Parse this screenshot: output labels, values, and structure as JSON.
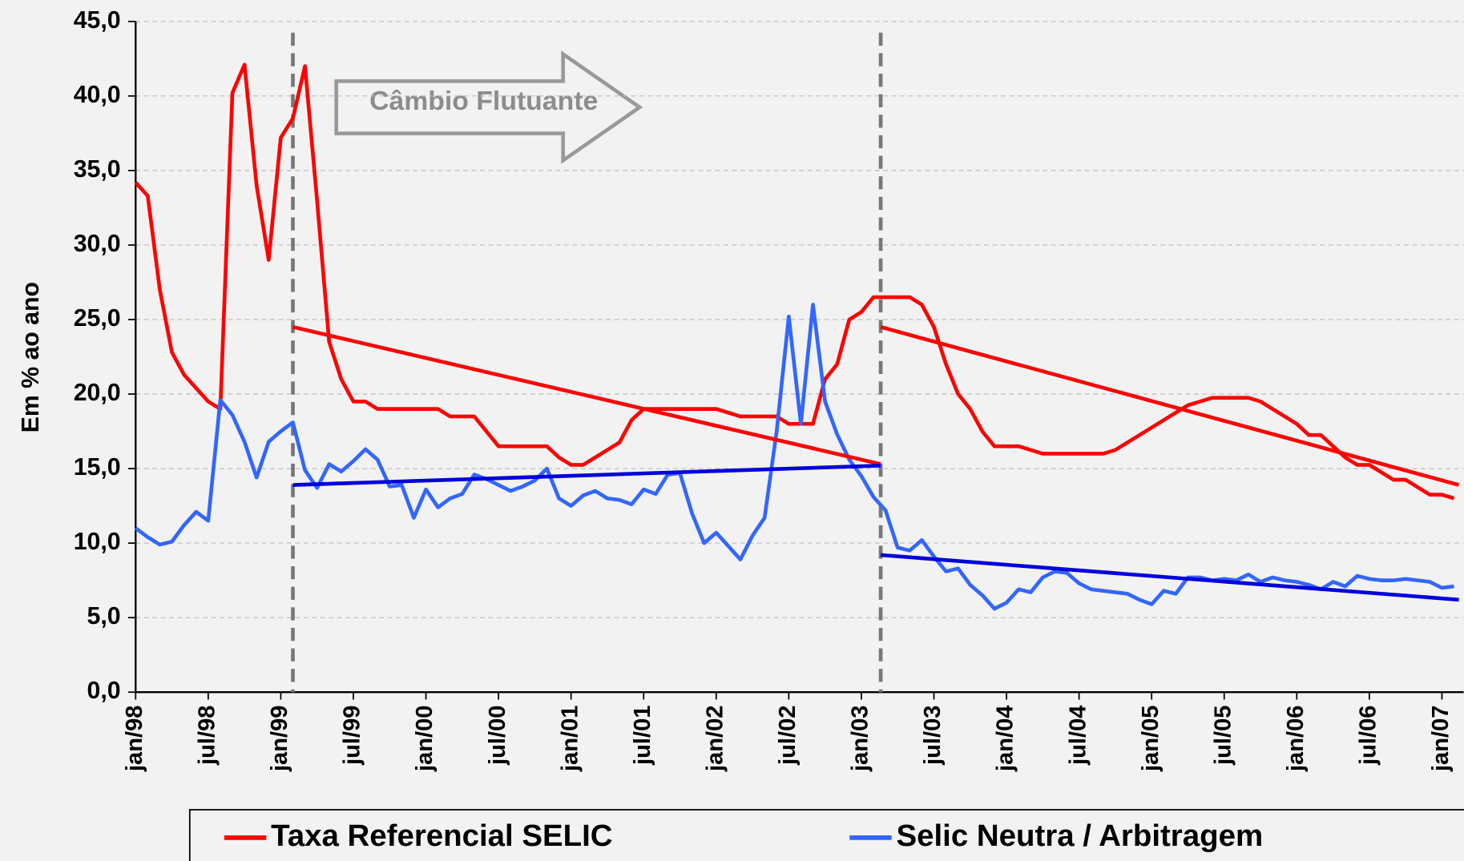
{
  "chart_data": {
    "type": "line",
    "ylabel": "Em % ao ano",
    "annotation": "Câmbio Flutuante",
    "categories": [
      "jan/98",
      null,
      null,
      null,
      null,
      null,
      "jul/98",
      null,
      null,
      null,
      null,
      null,
      "jan/99",
      null,
      null,
      null,
      null,
      null,
      "jul/99",
      null,
      null,
      null,
      null,
      null,
      "jan/00",
      null,
      null,
      null,
      null,
      null,
      "jul/00",
      null,
      null,
      null,
      null,
      null,
      "jan/01",
      null,
      null,
      null,
      null,
      null,
      "jul/01",
      null,
      null,
      null,
      null,
      null,
      "jan/02",
      null,
      null,
      null,
      null,
      null,
      "jul/02",
      null,
      null,
      null,
      null,
      null,
      "jan/03",
      null,
      null,
      null,
      null,
      null,
      "jul/03",
      null,
      null,
      null,
      null,
      null,
      "jan/04",
      null,
      null,
      null,
      null,
      null,
      "jul/04",
      null,
      null,
      null,
      null,
      null,
      "jan/05",
      null,
      null,
      null,
      null,
      null,
      "jul/05",
      null,
      null,
      null,
      null,
      null,
      "jan/06",
      null,
      null,
      null,
      null,
      null,
      "jul/06",
      null,
      null,
      null,
      null,
      null,
      "jan/07",
      null
    ],
    "series": [
      {
        "name": "Taxa Referencial SELIC",
        "color": "#ff0000",
        "values": [
          34.2,
          33.3,
          27,
          22.8,
          21.3,
          20.4,
          19.5,
          19.0,
          40.2,
          42.1,
          34,
          29,
          37.2,
          38.5,
          42,
          33,
          23.5,
          21,
          19.5,
          19.5,
          19,
          19,
          19,
          19,
          19,
          19,
          18.5,
          18.5,
          18.5,
          17.5,
          16.5,
          16.5,
          16.5,
          16.5,
          16.5,
          15.75,
          15.25,
          15.25,
          15.75,
          16.25,
          16.75,
          18.25,
          19,
          19,
          19,
          19,
          19,
          19,
          19,
          18.75,
          18.5,
          18.5,
          18.5,
          18.5,
          18,
          18,
          18,
          21,
          22,
          25,
          25.5,
          26.5,
          26.5,
          26.5,
          26.5,
          26,
          24.5,
          22,
          20,
          19,
          17.5,
          16.5,
          16.5,
          16.5,
          16.25,
          16,
          16,
          16,
          16,
          16,
          16,
          16.25,
          16.75,
          17.25,
          17.75,
          18.25,
          18.75,
          19.25,
          19.5,
          19.75,
          19.75,
          19.75,
          19.75,
          19.5,
          19,
          18.5,
          18,
          17.25,
          17.25,
          16.5,
          15.75,
          15.25,
          15.25,
          14.75,
          14.25,
          14.25,
          13.75,
          13.25,
          13.25,
          13.0
        ]
      },
      {
        "name": "Selic Neutra / Arbitragem",
        "color": "#3366ff",
        "values": [
          11.0,
          10.4,
          9.9,
          10.1,
          11.2,
          12.1,
          11.5,
          19.6,
          18.6,
          16.8,
          14.4,
          16.8,
          17.5,
          18.1,
          14.9,
          13.7,
          15.3,
          14.8,
          15.5,
          16.3,
          15.6,
          13.8,
          13.9,
          11.7,
          13.6,
          12.4,
          13.0,
          13.3,
          14.6,
          14.3,
          13.9,
          13.5,
          13.8,
          14.2,
          15.0,
          13.0,
          12.5,
          13.2,
          13.5,
          13.0,
          12.9,
          12.6,
          13.6,
          13.3,
          14.6,
          14.7,
          12.0,
          10.0,
          10.7,
          9.8,
          8.9,
          10.5,
          11.7,
          17.5,
          25.2,
          18.0,
          26.0,
          19.5,
          17.3,
          15.6,
          14.5,
          13.1,
          12.2,
          9.7,
          9.5,
          10.2,
          9.1,
          8.1,
          8.3,
          7.2,
          6.5,
          5.6,
          6.0,
          6.9,
          6.7,
          7.7,
          8.1,
          8.0,
          7.3,
          6.9,
          6.8,
          6.7,
          6.6,
          6.2,
          5.9,
          6.8,
          6.6,
          7.7,
          7.7,
          7.5,
          7.6,
          7.5,
          7.9,
          7.4,
          7.7,
          7.5,
          7.4,
          7.2,
          6.9,
          7.4,
          7.1,
          7.8,
          7.6,
          7.5,
          7.5,
          7.6,
          7.5,
          7.4,
          7.0,
          7.1
        ]
      }
    ],
    "trend_lines": [
      {
        "color": "#ff0000",
        "x": [
          13,
          61.6
        ],
        "values": [
          24.5,
          15.3
        ]
      },
      {
        "color": "#ff0000",
        "x": [
          61.6,
          109.4
        ],
        "values": [
          24.5,
          13.9
        ]
      },
      {
        "color": "#0000dd",
        "x": [
          13,
          61.6
        ],
        "values": [
          13.9,
          15.2
        ]
      },
      {
        "color": "#0000dd",
        "x": [
          61.6,
          109.4
        ],
        "values": [
          9.2,
          6.2
        ]
      }
    ],
    "vlines": [
      13,
      61.6
    ],
    "xlim": [
      0,
      109.8
    ],
    "ylim": [
      0,
      45
    ],
    "yticks": [
      {
        "value": 0,
        "label": "0,0"
      },
      {
        "value": 5,
        "label": "5,0"
      },
      {
        "value": 10,
        "label": "10,0"
      },
      {
        "value": 15,
        "label": "15,0"
      },
      {
        "value": 20,
        "label": "20,0"
      },
      {
        "value": 25,
        "label": "25,0"
      },
      {
        "value": 30,
        "label": "30,0"
      },
      {
        "value": 35,
        "label": "35,0"
      },
      {
        "value": 40,
        "label": "40,0"
      },
      {
        "value": 45,
        "label": "45,0"
      }
    ],
    "grid": true
  }
}
